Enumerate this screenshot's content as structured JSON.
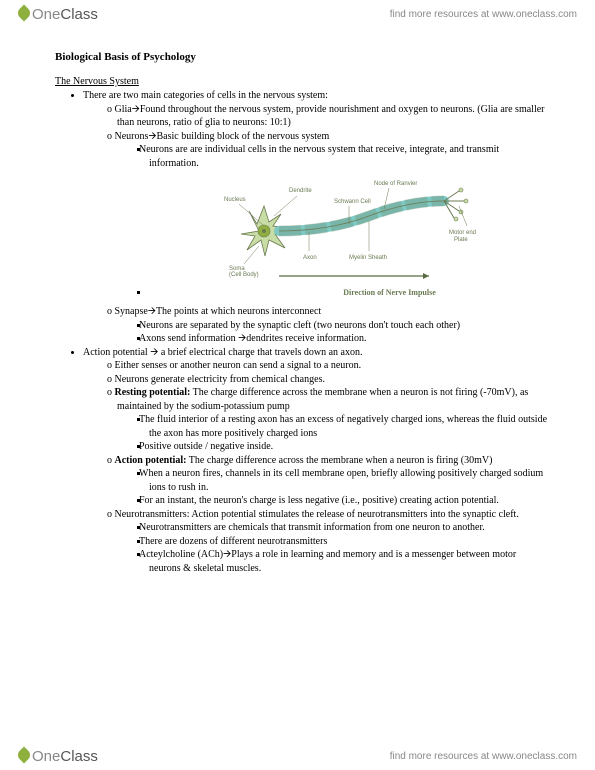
{
  "brand": {
    "part1": "One",
    "part2": "Class"
  },
  "header_link": "find more resources at www.oneclass.com",
  "footer_link": "find more resources at www.oneclass.com",
  "title": "Biological Basis of Psychology",
  "section": "The Nervous System",
  "b1": "There are two main categories of cells in the nervous system:",
  "glia": "Glia🡪Found throughout the nervous system, provide nourishment and oxygen to neurons. (Glia are smaller than neurons, ratio of glia to neurons: 10:1)",
  "neurons": "Neurons🡪Basic building block of the nervous system",
  "neurons_s1": "Neurons are are individual cells in the nervous system that receive, integrate, and transmit information.",
  "diagram": {
    "labels": {
      "nucleus": "Nucleus",
      "dendrite": "Dendrite",
      "node": "Node of Ranvier",
      "schwann": "Schwann Cell",
      "axon": "Axon",
      "soma1": "Soma",
      "soma2": "(Cell Body)",
      "myelin": "Myelin Sheath",
      "motor1": "Motor end",
      "motor2": "Plate"
    },
    "caption": "Direction of Nerve Impulse",
    "colors": {
      "outline": "#6a7a52",
      "fill_light": "#c8dca5",
      "fill_axon": "#7ec9c4",
      "nucleus": "#8fb03e",
      "label": "#6a7a52",
      "arrow": "#5a6a42"
    }
  },
  "synapse": "Synapse🡪The points at which neurons interconnect",
  "synapse_s1": "Neurons are separated by the synaptic cleft (two neurons don't touch each other)",
  "synapse_s2": "Axons send information 🡪dendrites receive information.",
  "b2": "Action potential 🡪 a brief electrical charge that travels down an axon.",
  "ap_o1": "Either senses or another neuron can send a signal to a neuron.",
  "ap_o2": "Neurons generate electricity from chemical changes.",
  "rest_label": "Resting potential:",
  "rest_text": " The charge difference across the membrane when a neuron is not firing (-70mV), as maintained by the sodium-potassium pump",
  "rest_s1": "The fluid interior of a resting axon has an excess of negatively charged ions, whereas the fluid outside the axon has more positively charged ions",
  "rest_s2": "Positive outside / negative inside.",
  "act_label": "Action potential:",
  "act_text": " The charge difference across the membrane when a neuron is firing (30mV)",
  "act_s1": "When a neuron fires, channels in its cell membrane open, briefly allowing positively charged sodium ions to rush in.",
  "act_s2": "For an instant, the neuron's charge is less negative (i.e., positive) creating action potential.",
  "nt": "Neurotransmitters: Action potential stimulates the release of neurotransmitters into the synaptic cleft.",
  "nt_s1": "Neurotransmitters are chemicals that transmit information from one neuron to another.",
  "nt_s2": "There are dozens of different neurotransmitters",
  "nt_s3": "Acteylcholine (ACh)🡪Plays a role in learning and memory and is a messenger between motor neurons & skeletal muscles."
}
